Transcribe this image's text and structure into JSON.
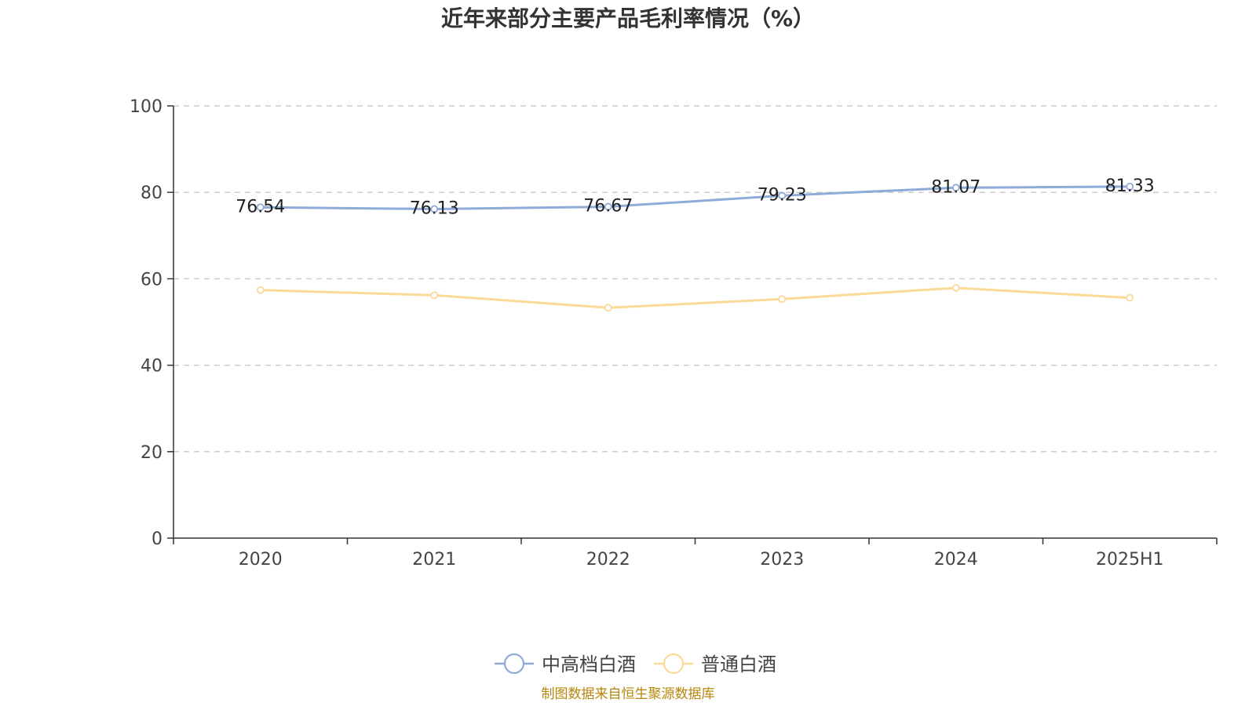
{
  "chart_data": {
    "type": "line",
    "title": "近年来部分主要产品毛利率情况（%）",
    "categories": [
      "2020",
      "2021",
      "2022",
      "2023",
      "2024",
      "2025H1"
    ],
    "ylim": [
      0,
      100
    ],
    "yticks": [
      0,
      20,
      40,
      60,
      80,
      100
    ],
    "grid": true,
    "legend_position": "bottom",
    "series": [
      {
        "name": "中高档白酒",
        "color": "#8eabd9",
        "values": [
          76.54,
          76.13,
          76.67,
          79.23,
          81.07,
          81.33
        ],
        "labels": [
          "76.54",
          "76.13",
          "76.67",
          "79.23",
          "81.07",
          "81.33"
        ]
      },
      {
        "name": "普通白酒",
        "color": "#fcd996",
        "values": [
          57.4,
          56.2,
          53.3,
          55.3,
          57.9,
          55.6
        ]
      }
    ]
  },
  "source_note": "制图数据来自恒生聚源数据库",
  "source_note_color": "#b8860b"
}
